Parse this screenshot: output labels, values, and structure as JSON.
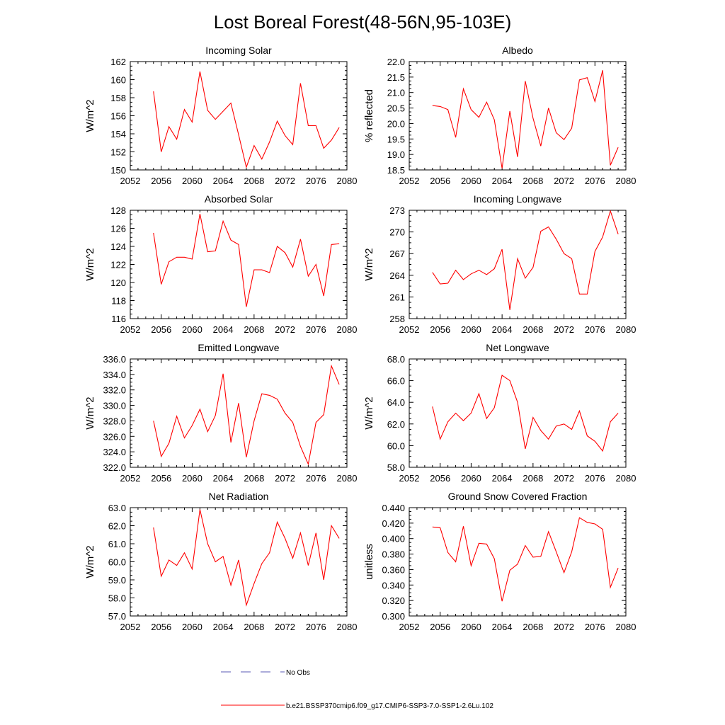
{
  "figure_title": "Lost Boreal Forest(48-56N,95-103E)",
  "legend": {
    "entries": [
      {
        "label": "No Obs",
        "color": "#5a5ab4",
        "dash": true
      },
      {
        "label": "b.e21.BSSP370cmip6.f09_g17.CMIP6-SSP3-7.0-SSP1-2.6Lu.102",
        "color": "#ff0000",
        "dash": false
      }
    ]
  },
  "chart_data": [
    {
      "type": "line",
      "title": "Incoming Solar",
      "xlabel": "",
      "ylabel": "W/m^2",
      "xlim": [
        2052,
        2080
      ],
      "ylim": [
        150,
        162
      ],
      "xticks": [
        "2052",
        "2056",
        "2060",
        "2064",
        "2068",
        "2072",
        "2076",
        "2080"
      ],
      "yticks": [
        "150",
        "152",
        "154",
        "156",
        "158",
        "160",
        "162"
      ],
      "x": [
        2055,
        2056,
        2057,
        2058,
        2059,
        2060,
        2061,
        2062,
        2063,
        2064,
        2065,
        2066,
        2067,
        2068,
        2069,
        2070,
        2071,
        2072,
        2073,
        2074,
        2075,
        2076,
        2077,
        2078,
        2079
      ],
      "series": [
        {
          "values": [
            158.7,
            152.0,
            154.8,
            153.4,
            156.7,
            155.3,
            160.9,
            156.6,
            155.6,
            156.5,
            157.4,
            153.9,
            150.3,
            152.7,
            151.2,
            153.1,
            155.4,
            153.8,
            152.8,
            159.6,
            154.9,
            154.9,
            152.4,
            153.3,
            154.7
          ]
        }
      ]
    },
    {
      "type": "line",
      "title": "Albedo",
      "xlabel": "",
      "ylabel": "% reflected",
      "xlim": [
        2052,
        2080
      ],
      "ylim": [
        18.5,
        22.0
      ],
      "xticks": [
        "2052",
        "2056",
        "2060",
        "2064",
        "2068",
        "2072",
        "2076",
        "2080"
      ],
      "yticks": [
        "18.5",
        "19.0",
        "19.5",
        "20.0",
        "20.5",
        "21.0",
        "21.5",
        "22.0"
      ],
      "x": [
        2055,
        2056,
        2057,
        2058,
        2059,
        2060,
        2061,
        2062,
        2063,
        2064,
        2065,
        2066,
        2067,
        2068,
        2069,
        2070,
        2071,
        2072,
        2073,
        2074,
        2075,
        2076,
        2077,
        2078,
        2079
      ],
      "series": [
        {
          "values": [
            20.58,
            20.55,
            20.45,
            19.55,
            21.12,
            20.45,
            20.2,
            20.69,
            20.12,
            18.55,
            20.4,
            18.92,
            21.37,
            20.17,
            19.27,
            20.5,
            19.7,
            19.48,
            19.85,
            21.41,
            21.48,
            20.71,
            21.72,
            18.65,
            19.23
          ]
        }
      ]
    },
    {
      "type": "line",
      "title": "Absorbed Solar",
      "xlabel": "",
      "ylabel": "W/m^2",
      "xlim": [
        2052,
        2080
      ],
      "ylim": [
        116,
        128
      ],
      "xticks": [
        "2052",
        "2056",
        "2060",
        "2064",
        "2068",
        "2072",
        "2076",
        "2080"
      ],
      "yticks": [
        "116",
        "118",
        "120",
        "122",
        "124",
        "126",
        "128"
      ],
      "x": [
        2055,
        2056,
        2057,
        2058,
        2059,
        2060,
        2061,
        2062,
        2063,
        2064,
        2065,
        2066,
        2067,
        2068,
        2069,
        2070,
        2071,
        2072,
        2073,
        2074,
        2075,
        2076,
        2077,
        2078,
        2079
      ],
      "series": [
        {
          "values": [
            125.5,
            119.8,
            122.3,
            122.8,
            122.8,
            122.6,
            127.6,
            123.4,
            123.5,
            126.8,
            124.7,
            124.2,
            117.3,
            121.4,
            121.4,
            121.1,
            124.0,
            123.3,
            121.7,
            124.8,
            120.7,
            122.0,
            118.5,
            124.2,
            124.3
          ]
        }
      ]
    },
    {
      "type": "line",
      "title": "Incoming Longwave",
      "xlabel": "",
      "ylabel": "W/m^2",
      "xlim": [
        2052,
        2080
      ],
      "ylim": [
        258,
        273
      ],
      "xticks": [
        "2052",
        "2056",
        "2060",
        "2064",
        "2068",
        "2072",
        "2076",
        "2080"
      ],
      "yticks": [
        "258",
        "261",
        "264",
        "267",
        "270",
        "273"
      ],
      "x": [
        2055,
        2056,
        2057,
        2058,
        2059,
        2060,
        2061,
        2062,
        2063,
        2064,
        2065,
        2066,
        2067,
        2068,
        2069,
        2070,
        2071,
        2072,
        2073,
        2074,
        2075,
        2076,
        2077,
        2078,
        2079
      ],
      "series": [
        {
          "values": [
            264.4,
            262.8,
            262.9,
            264.7,
            263.4,
            264.2,
            264.7,
            264.1,
            264.9,
            267.6,
            259.2,
            266.3,
            263.6,
            265.1,
            270.1,
            270.7,
            269.0,
            267.0,
            266.3,
            261.4,
            261.4,
            267.3,
            269.3,
            272.9,
            269.7
          ]
        }
      ]
    },
    {
      "type": "line",
      "title": "Emitted Longwave",
      "xlabel": "",
      "ylabel": "W/m^2",
      "xlim": [
        2052,
        2080
      ],
      "ylim": [
        322.0,
        336.0
      ],
      "xticks": [
        "2052",
        "2056",
        "2060",
        "2064",
        "2068",
        "2072",
        "2076",
        "2080"
      ],
      "yticks": [
        "322.0",
        "324.0",
        "326.0",
        "328.0",
        "330.0",
        "332.0",
        "334.0",
        "336.0"
      ],
      "x": [
        2055,
        2056,
        2057,
        2058,
        2059,
        2060,
        2061,
        2062,
        2063,
        2064,
        2065,
        2066,
        2067,
        2068,
        2069,
        2070,
        2071,
        2072,
        2073,
        2074,
        2075,
        2076,
        2077,
        2078,
        2079
      ],
      "series": [
        {
          "values": [
            328.0,
            323.4,
            325.1,
            328.6,
            325.8,
            327.4,
            329.5,
            326.6,
            328.7,
            334.1,
            325.2,
            330.3,
            323.3,
            328.0,
            331.5,
            331.3,
            330.8,
            329.0,
            327.8,
            324.7,
            322.4,
            327.8,
            328.8,
            335.1,
            332.7
          ]
        }
      ]
    },
    {
      "type": "line",
      "title": "Net Longwave",
      "xlabel": "",
      "ylabel": "W/m^2",
      "xlim": [
        2052,
        2080
      ],
      "ylim": [
        58.0,
        68.0
      ],
      "xticks": [
        "2052",
        "2056",
        "2060",
        "2064",
        "2068",
        "2072",
        "2076",
        "2080"
      ],
      "yticks": [
        "58.0",
        "60.0",
        "62.0",
        "64.0",
        "66.0",
        "68.0"
      ],
      "x": [
        2055,
        2056,
        2057,
        2058,
        2059,
        2060,
        2061,
        2062,
        2063,
        2064,
        2065,
        2066,
        2067,
        2068,
        2069,
        2070,
        2071,
        2072,
        2073,
        2074,
        2075,
        2076,
        2077,
        2078,
        2079
      ],
      "series": [
        {
          "values": [
            63.6,
            60.6,
            62.2,
            63.0,
            62.3,
            63.0,
            64.8,
            62.5,
            63.5,
            66.5,
            66.0,
            64.0,
            59.7,
            62.6,
            61.4,
            60.6,
            61.8,
            62.0,
            61.5,
            63.2,
            60.9,
            60.4,
            59.5,
            62.2,
            63.0
          ]
        }
      ]
    },
    {
      "type": "line",
      "title": "Net Radiation",
      "xlabel": "",
      "ylabel": "W/m^2",
      "xlim": [
        2052,
        2080
      ],
      "ylim": [
        57.0,
        63.0
      ],
      "xticks": [
        "2052",
        "2056",
        "2060",
        "2064",
        "2068",
        "2072",
        "2076",
        "2080"
      ],
      "yticks": [
        "57.0",
        "58.0",
        "59.0",
        "60.0",
        "61.0",
        "62.0",
        "63.0"
      ],
      "x": [
        2055,
        2056,
        2057,
        2058,
        2059,
        2060,
        2061,
        2062,
        2063,
        2064,
        2065,
        2066,
        2067,
        2068,
        2069,
        2070,
        2071,
        2072,
        2073,
        2074,
        2075,
        2076,
        2077,
        2078,
        2079
      ],
      "series": [
        {
          "values": [
            61.9,
            59.2,
            60.1,
            59.8,
            60.5,
            59.6,
            62.9,
            61.0,
            60.0,
            60.3,
            58.7,
            60.1,
            57.6,
            58.8,
            59.9,
            60.5,
            62.2,
            61.3,
            60.2,
            61.6,
            59.8,
            61.6,
            59.0,
            62.0,
            61.3
          ]
        }
      ]
    },
    {
      "type": "line",
      "title": "Ground Snow Covered Fraction",
      "xlabel": "",
      "ylabel": "unitless",
      "xlim": [
        2052,
        2080
      ],
      "ylim": [
        0.3,
        0.44
      ],
      "xticks": [
        "2052",
        "2056",
        "2060",
        "2064",
        "2068",
        "2072",
        "2076",
        "2080"
      ],
      "yticks": [
        "0.300",
        "0.320",
        "0.340",
        "0.360",
        "0.380",
        "0.400",
        "0.420",
        "0.440"
      ],
      "x": [
        2055,
        2056,
        2057,
        2058,
        2059,
        2060,
        2061,
        2062,
        2063,
        2064,
        2065,
        2066,
        2067,
        2068,
        2069,
        2070,
        2071,
        2072,
        2073,
        2074,
        2075,
        2076,
        2077,
        2078,
        2079
      ],
      "series": [
        {
          "values": [
            0.415,
            0.414,
            0.382,
            0.37,
            0.416,
            0.365,
            0.394,
            0.393,
            0.374,
            0.319,
            0.359,
            0.367,
            0.391,
            0.376,
            0.377,
            0.409,
            0.383,
            0.356,
            0.383,
            0.427,
            0.421,
            0.419,
            0.412,
            0.337,
            0.362
          ]
        }
      ]
    }
  ]
}
